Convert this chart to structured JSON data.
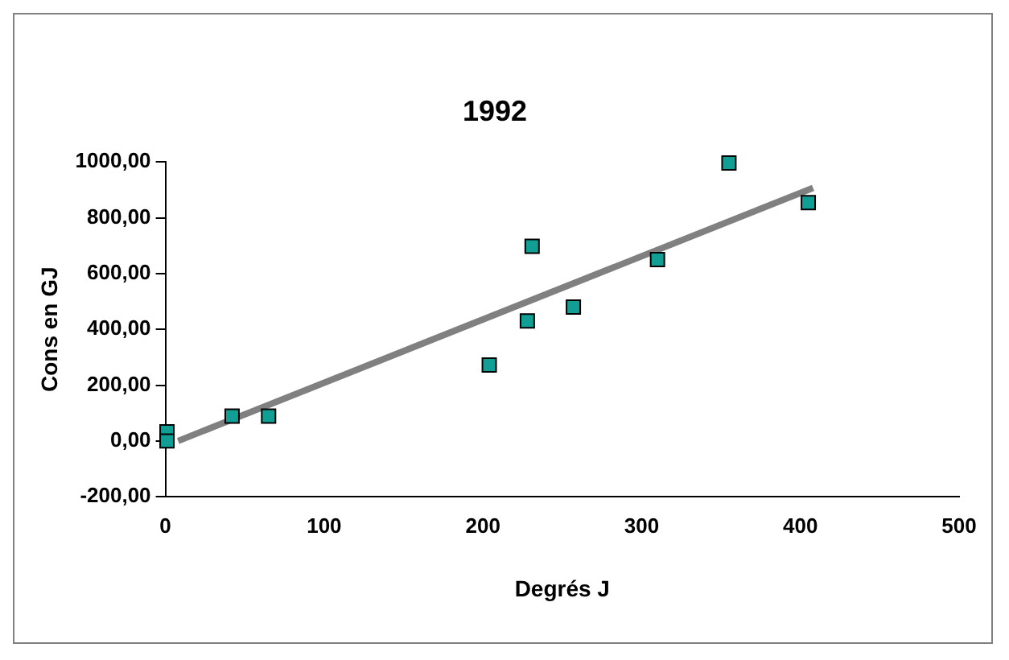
{
  "chart_data": {
    "type": "scatter",
    "title": "1992",
    "xlabel": "Degrés J",
    "ylabel": "Cons en GJ",
    "grid": false,
    "legend": false,
    "xlim": [
      0,
      500
    ],
    "xticks": [
      0,
      100,
      200,
      300,
      400,
      500
    ],
    "ylim": [
      -200,
      1000
    ],
    "yticks": [
      {
        "value": -200,
        "label": "-200,00"
      },
      {
        "value": 0,
        "label": "0,00"
      },
      {
        "value": 200,
        "label": "200,00"
      },
      {
        "value": 400,
        "label": "400,00"
      },
      {
        "value": 600,
        "label": "600,00"
      },
      {
        "value": 800,
        "label": "800,00"
      },
      {
        "value": 1000,
        "label": "1000,00"
      }
    ],
    "series": [
      {
        "marker": "square",
        "color": "#119e94",
        "x": [
          1,
          1,
          42,
          65,
          204,
          228,
          231,
          257,
          310,
          355,
          405
        ],
        "values": [
          33,
          0,
          89,
          89,
          272,
          430,
          698,
          480,
          650,
          996,
          854
        ]
      },
      {
        "type": "line",
        "color": "#808080",
        "x": [
          8,
          408
        ],
        "values": [
          0,
          907
        ]
      }
    ]
  }
}
